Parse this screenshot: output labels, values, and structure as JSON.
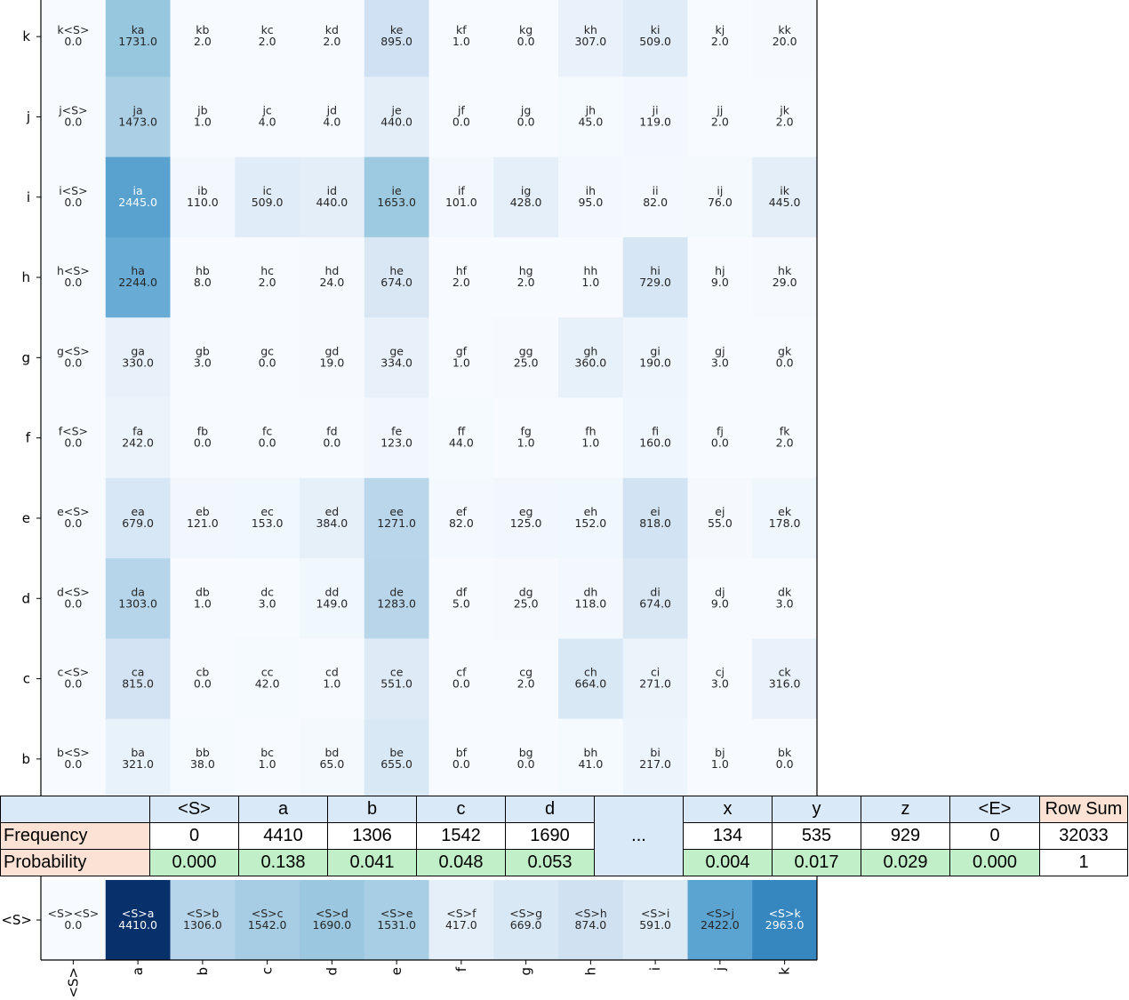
{
  "chart_data": {
    "type": "heatmap",
    "x_categories": [
      "<S>",
      "a",
      "b",
      "c",
      "d",
      "e",
      "f",
      "g",
      "h",
      "i",
      "j",
      "k"
    ],
    "y_categories_top_to_bottom": [
      "k",
      "j",
      "i",
      "h",
      "g",
      "f",
      "e",
      "d",
      "c",
      "b"
    ],
    "colormap": "Blues",
    "cells": [
      {
        "row": "k",
        "labels": [
          "k<S>",
          "ka",
          "kb",
          "kc",
          "kd",
          "ke",
          "kf",
          "kg",
          "kh",
          "ki",
          "kj",
          "kk"
        ],
        "values": [
          0.0,
          1731.0,
          2.0,
          2.0,
          2.0,
          895.0,
          1.0,
          0.0,
          307.0,
          509.0,
          2.0,
          20.0
        ]
      },
      {
        "row": "j",
        "labels": [
          "j<S>",
          "ja",
          "jb",
          "jc",
          "jd",
          "je",
          "jf",
          "jg",
          "jh",
          "ji",
          "jj",
          "jk"
        ],
        "values": [
          0.0,
          1473.0,
          1.0,
          4.0,
          4.0,
          440.0,
          0.0,
          0.0,
          45.0,
          119.0,
          2.0,
          2.0
        ]
      },
      {
        "row": "i",
        "labels": [
          "i<S>",
          "ia",
          "ib",
          "ic",
          "id",
          "ie",
          "if",
          "ig",
          "ih",
          "ii",
          "ij",
          "ik"
        ],
        "values": [
          0.0,
          2445.0,
          110.0,
          509.0,
          440.0,
          1653.0,
          101.0,
          428.0,
          95.0,
          82.0,
          76.0,
          445.0
        ]
      },
      {
        "row": "h",
        "labels": [
          "h<S>",
          "ha",
          "hb",
          "hc",
          "hd",
          "he",
          "hf",
          "hg",
          "hh",
          "hi",
          "hj",
          "hk"
        ],
        "values": [
          0.0,
          2244.0,
          8.0,
          2.0,
          24.0,
          674.0,
          2.0,
          2.0,
          1.0,
          729.0,
          9.0,
          29.0
        ]
      },
      {
        "row": "g",
        "labels": [
          "g<S>",
          "ga",
          "gb",
          "gc",
          "gd",
          "ge",
          "gf",
          "gg",
          "gh",
          "gi",
          "gj",
          "gk"
        ],
        "values": [
          0.0,
          330.0,
          3.0,
          0.0,
          19.0,
          334.0,
          1.0,
          25.0,
          360.0,
          190.0,
          3.0,
          0.0
        ]
      },
      {
        "row": "f",
        "labels": [
          "f<S>",
          "fa",
          "fb",
          "fc",
          "fd",
          "fe",
          "ff",
          "fg",
          "fh",
          "fi",
          "fj",
          "fk"
        ],
        "values": [
          0.0,
          242.0,
          0.0,
          0.0,
          0.0,
          123.0,
          44.0,
          1.0,
          1.0,
          160.0,
          0.0,
          2.0
        ]
      },
      {
        "row": "e",
        "labels": [
          "e<S>",
          "ea",
          "eb",
          "ec",
          "ed",
          "ee",
          "ef",
          "eg",
          "eh",
          "ei",
          "ej",
          "ek"
        ],
        "values": [
          0.0,
          679.0,
          121.0,
          153.0,
          384.0,
          1271.0,
          82.0,
          125.0,
          152.0,
          818.0,
          55.0,
          178.0
        ]
      },
      {
        "row": "d",
        "labels": [
          "d<S>",
          "da",
          "db",
          "dc",
          "dd",
          "de",
          "df",
          "dg",
          "dh",
          "di",
          "dj",
          "dk"
        ],
        "values": [
          0.0,
          1303.0,
          1.0,
          3.0,
          149.0,
          1283.0,
          5.0,
          25.0,
          118.0,
          674.0,
          9.0,
          3.0
        ]
      },
      {
        "row": "c",
        "labels": [
          "c<S>",
          "ca",
          "cb",
          "cc",
          "cd",
          "ce",
          "cf",
          "cg",
          "ch",
          "ci",
          "cj",
          "ck"
        ],
        "values": [
          0.0,
          815.0,
          0.0,
          42.0,
          1.0,
          551.0,
          0.0,
          2.0,
          664.0,
          271.0,
          3.0,
          316.0
        ]
      },
      {
        "row": "b",
        "labels": [
          "b<S>",
          "ba",
          "bb",
          "bc",
          "bd",
          "be",
          "bf",
          "bg",
          "bh",
          "bi",
          "bj",
          "bk"
        ],
        "values": [
          0.0,
          321.0,
          38.0,
          1.0,
          65.0,
          655.0,
          0.0,
          0.0,
          41.0,
          217.0,
          1.0,
          0.0
        ]
      }
    ],
    "start_row": {
      "row": "<S>",
      "labels": [
        "<S><S>",
        "<S>a",
        "<S>b",
        "<S>c",
        "<S>d",
        "<S>e",
        "<S>f",
        "<S>g",
        "<S>h",
        "<S>i",
        "<S>j",
        "<S>k"
      ],
      "values": [
        0.0,
        4410.0,
        1306.0,
        1542.0,
        1690.0,
        1531.0,
        417.0,
        669.0,
        874.0,
        591.0,
        2422.0,
        2963.0
      ]
    },
    "color_max": 4410.0
  },
  "table": {
    "headers": [
      "<S>",
      "a",
      "b",
      "c",
      "d",
      "...",
      "x",
      "y",
      "z",
      "<E>"
    ],
    "row_sum_header": "Row Sum",
    "ellipsis": "...",
    "frequency": {
      "label": "Frequency",
      "values": [
        "0",
        "4410",
        "1306",
        "1542",
        "1690",
        "134",
        "535",
        "929",
        "0"
      ],
      "row_sum": "32033"
    },
    "probability": {
      "label": "Probability",
      "values": [
        "0.000",
        "0.138",
        "0.041",
        "0.048",
        "0.053",
        "0.004",
        "0.017",
        "0.029",
        "0.000"
      ],
      "row_sum": "1"
    }
  }
}
